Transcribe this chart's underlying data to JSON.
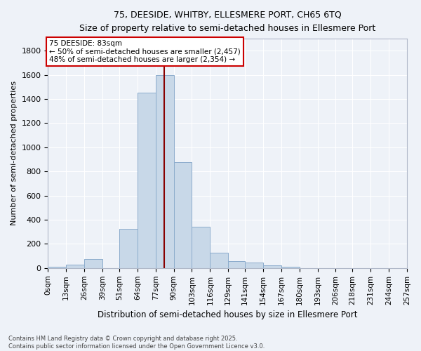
{
  "title": "75, DEESIDE, WHITBY, ELLESMERE PORT, CH65 6TQ",
  "subtitle": "Size of property relative to semi-detached houses in Ellesmere Port",
  "xlabel": "Distribution of semi-detached houses by size in Ellesmere Port",
  "ylabel": "Number of semi-detached properties",
  "bin_labels": [
    "0sqm",
    "13sqm",
    "26sqm",
    "39sqm",
    "51sqm",
    "64sqm",
    "77sqm",
    "90sqm",
    "103sqm",
    "116sqm",
    "129sqm",
    "141sqm",
    "154sqm",
    "167sqm",
    "180sqm",
    "193sqm",
    "206sqm",
    "218sqm",
    "231sqm",
    "244sqm",
    "257sqm"
  ],
  "bin_edges": [
    0,
    13,
    26,
    39,
    51,
    64,
    77,
    90,
    103,
    116,
    129,
    141,
    154,
    167,
    180,
    193,
    206,
    218,
    231,
    244,
    257
  ],
  "bar_heights": [
    10,
    30,
    75,
    0,
    325,
    1450,
    1600,
    875,
    340,
    125,
    55,
    45,
    20,
    10,
    0,
    0,
    0,
    0,
    0,
    0
  ],
  "bar_color": "#c8d8e8",
  "bar_edge_color": "#8caccc",
  "property_value": 83,
  "property_label": "75 DEESIDE: 83sqm",
  "annotation_line1": "← 50% of semi-detached houses are smaller (2,457)",
  "annotation_line2": "48% of semi-detached houses are larger (2,354) →",
  "vline_color": "#880000",
  "annotation_box_edge": "#cc0000",
  "annotation_box_face": "#ffffff",
  "ylim": [
    0,
    1900
  ],
  "yticks": [
    0,
    200,
    400,
    600,
    800,
    1000,
    1200,
    1400,
    1600,
    1800
  ],
  "footer_line1": "Contains HM Land Registry data © Crown copyright and database right 2025.",
  "footer_line2": "Contains public sector information licensed under the Open Government Licence v3.0.",
  "background_color": "#eef2f8",
  "grid_color": "#ffffff",
  "spine_color": "#b0b8c8"
}
